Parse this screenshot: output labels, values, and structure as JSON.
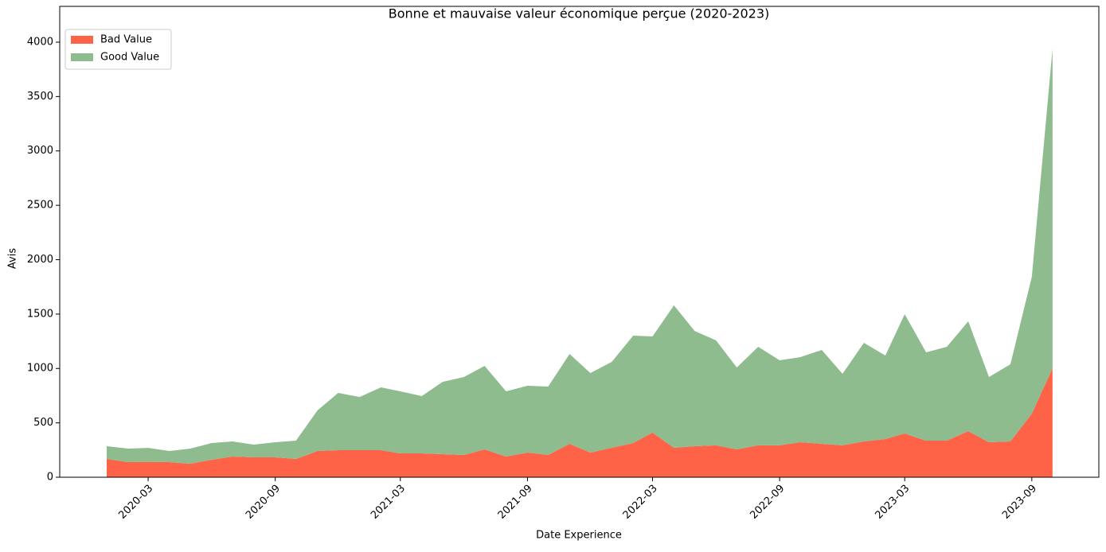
{
  "chart_data": {
    "type": "stacked_area",
    "title": "Bonne et mauvaise valeur économique perçue (2020-2023)",
    "xlabel": "Date Experience",
    "ylabel": "Avis",
    "x": [
      "2020-01",
      "2020-02",
      "2020-03",
      "2020-04",
      "2020-05",
      "2020-06",
      "2020-07",
      "2020-08",
      "2020-09",
      "2020-10",
      "2020-11",
      "2020-12",
      "2021-01",
      "2021-02",
      "2021-03",
      "2021-04",
      "2021-05",
      "2021-06",
      "2021-07",
      "2021-08",
      "2021-09",
      "2021-10",
      "2021-11",
      "2021-12",
      "2022-01",
      "2022-02",
      "2022-03",
      "2022-04",
      "2022-05",
      "2022-06",
      "2022-07",
      "2022-08",
      "2022-09",
      "2022-10",
      "2022-11",
      "2022-12",
      "2023-01",
      "2023-02",
      "2023-03",
      "2023-04",
      "2023-05",
      "2023-06",
      "2023-07",
      "2023-08",
      "2023-09",
      "2023-10"
    ],
    "series": [
      {
        "name": "Bad Value",
        "color": "#ff6347",
        "values": [
          168,
          139,
          142,
          139,
          124,
          161,
          190,
          183,
          183,
          168,
          241,
          249,
          249,
          249,
          219,
          219,
          212,
          205,
          256,
          190,
          227,
          205,
          307,
          227,
          271,
          314,
          410,
          271,
          285,
          293,
          256,
          293,
          293,
          322,
          307,
          293,
          329,
          351,
          402,
          336,
          336,
          424,
          322,
          329,
          585,
          1002
        ]
      },
      {
        "name": "Good Value",
        "color": "#8fbc8f",
        "values": [
          117,
          124,
          128,
          102,
          139,
          153,
          139,
          117,
          139,
          168,
          373,
          526,
          489,
          577,
          571,
          527,
          665,
          716,
          768,
          600,
          614,
          629,
          826,
          731,
          789,
          988,
          884,
          1309,
          1060,
          965,
          753,
          906,
          782,
          782,
          863,
          658,
          907,
          768,
          1097,
          812,
          863,
          1009,
          599,
          709,
          1258,
          2939
        ]
      }
    ],
    "xlim": [
      "2019-10-25",
      "2023-12-07"
    ],
    "xticks": [
      "2020-03",
      "2020-09",
      "2021-03",
      "2021-09",
      "2022-03",
      "2022-09",
      "2023-03",
      "2023-09"
    ],
    "ylim": [
      0,
      4329
    ],
    "yticks": [
      0,
      500,
      1000,
      1500,
      2000,
      2500,
      3000,
      3500,
      4000
    ],
    "legend": "upper left"
  }
}
